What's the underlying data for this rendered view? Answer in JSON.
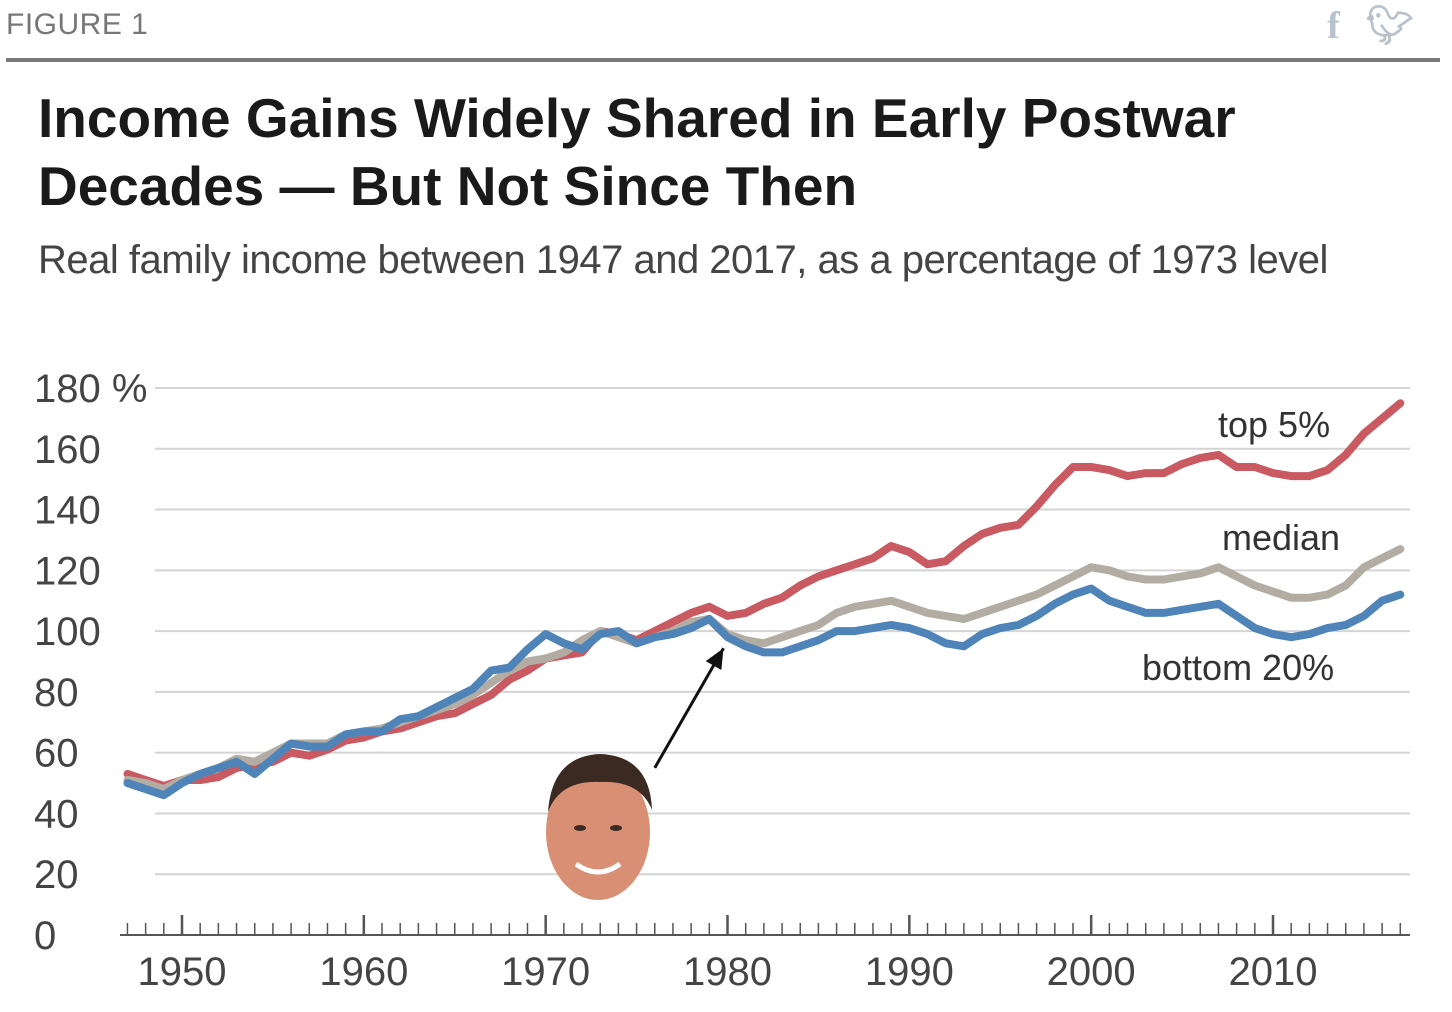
{
  "header": {
    "figure_label": "FIGURE 1",
    "share_icons": [
      "facebook-icon",
      "twitter-icon"
    ]
  },
  "chart_data": {
    "type": "line",
    "title": "Income Gains Widely Shared in Early Postwar Decades — But Not Since Then",
    "subtitle": "Real family income between 1947 and 2017, as a percentage of 1973 level",
    "xlabel": "",
    "ylabel": "",
    "xlim": [
      1947,
      2017
    ],
    "ylim": [
      0,
      180
    ],
    "yticks": [
      "180 %",
      "160",
      "140",
      "120",
      "100",
      "80",
      "60",
      "40",
      "20",
      "0"
    ],
    "yticks_values": [
      180,
      160,
      140,
      120,
      100,
      80,
      60,
      40,
      20,
      0
    ],
    "xticks": [
      "1950",
      "1960",
      "1970",
      "1980",
      "1990",
      "2000",
      "2010"
    ],
    "xticks_values": [
      1950,
      1960,
      1970,
      1980,
      1990,
      2000,
      2010
    ],
    "grid": true,
    "annotation": {
      "description": "arrow pointing to 1980 from a face image",
      "arrow_to": [
        1980,
        97
      ],
      "arrow_from": [
        1976,
        55
      ]
    },
    "series": [
      {
        "name": "top 5%",
        "color": "#c95a62",
        "x": [
          1947,
          1948,
          1949,
          1950,
          1951,
          1952,
          1953,
          1954,
          1955,
          1956,
          1957,
          1958,
          1959,
          1960,
          1961,
          1962,
          1963,
          1964,
          1965,
          1966,
          1967,
          1968,
          1969,
          1970,
          1971,
          1972,
          1973,
          1974,
          1975,
          1976,
          1977,
          1978,
          1979,
          1980,
          1981,
          1982,
          1983,
          1984,
          1985,
          1986,
          1987,
          1988,
          1989,
          1990,
          1991,
          1992,
          1993,
          1994,
          1995,
          1996,
          1997,
          1998,
          1999,
          2000,
          2001,
          2002,
          2003,
          2004,
          2005,
          2006,
          2007,
          2008,
          2009,
          2010,
          2011,
          2012,
          2013,
          2014,
          2015,
          2016,
          2017
        ],
        "values": [
          53,
          51,
          49,
          51,
          51,
          52,
          55,
          56,
          57,
          60,
          59,
          61,
          64,
          65,
          67,
          68,
          70,
          72,
          73,
          76,
          79,
          84,
          87,
          91,
          92,
          93,
          100,
          99,
          97,
          100,
          103,
          106,
          108,
          105,
          106,
          109,
          111,
          115,
          118,
          120,
          122,
          124,
          128,
          126,
          122,
          123,
          128,
          132,
          134,
          135,
          141,
          148,
          154,
          154,
          153,
          151,
          152,
          152,
          155,
          157,
          158,
          154,
          154,
          152,
          151,
          151,
          153,
          158,
          165,
          170,
          175
        ],
        "label": "top 5%"
      },
      {
        "name": "median",
        "color": "#b3aca2",
        "x": [
          1947,
          1948,
          1949,
          1950,
          1951,
          1952,
          1953,
          1954,
          1955,
          1956,
          1957,
          1958,
          1959,
          1960,
          1961,
          1962,
          1963,
          1964,
          1965,
          1966,
          1967,
          1968,
          1969,
          1970,
          1971,
          1972,
          1973,
          1974,
          1975,
          1976,
          1977,
          1978,
          1979,
          1980,
          1981,
          1982,
          1983,
          1984,
          1985,
          1986,
          1987,
          1988,
          1989,
          1990,
          1991,
          1992,
          1993,
          1994,
          1995,
          1996,
          1997,
          1998,
          1999,
          2000,
          2001,
          2002,
          2003,
          2004,
          2005,
          2006,
          2007,
          2008,
          2009,
          2010,
          2011,
          2012,
          2013,
          2014,
          2015,
          2016,
          2017
        ],
        "values": [
          51,
          50,
          48,
          51,
          53,
          55,
          58,
          57,
          60,
          63,
          63,
          63,
          66,
          67,
          68,
          70,
          72,
          74,
          76,
          79,
          83,
          87,
          90,
          91,
          93,
          97,
          100,
          98,
          96,
          98,
          100,
          103,
          104,
          99,
          97,
          96,
          98,
          100,
          102,
          106,
          108,
          109,
          110,
          108,
          106,
          105,
          104,
          106,
          108,
          110,
          112,
          115,
          118,
          121,
          120,
          118,
          117,
          117,
          118,
          119,
          121,
          118,
          115,
          113,
          111,
          111,
          112,
          115,
          121,
          124,
          127
        ],
        "label": "median"
      },
      {
        "name": "bottom 20%",
        "color": "#4f84b8",
        "x": [
          1947,
          1948,
          1949,
          1950,
          1951,
          1952,
          1953,
          1954,
          1955,
          1956,
          1957,
          1958,
          1959,
          1960,
          1961,
          1962,
          1963,
          1964,
          1965,
          1966,
          1967,
          1968,
          1969,
          1970,
          1971,
          1972,
          1973,
          1974,
          1975,
          1976,
          1977,
          1978,
          1979,
          1980,
          1981,
          1982,
          1983,
          1984,
          1985,
          1986,
          1987,
          1988,
          1989,
          1990,
          1991,
          1992,
          1993,
          1994,
          1995,
          1996,
          1997,
          1998,
          1999,
          2000,
          2001,
          2002,
          2003,
          2004,
          2005,
          2006,
          2007,
          2008,
          2009,
          2010,
          2011,
          2012,
          2013,
          2014,
          2015,
          2016,
          2017
        ],
        "values": [
          50,
          48,
          46,
          50,
          53,
          55,
          57,
          53,
          58,
          63,
          62,
          62,
          66,
          67,
          67,
          71,
          72,
          75,
          78,
          81,
          87,
          88,
          94,
          99,
          96,
          94,
          99,
          100,
          96,
          98,
          99,
          101,
          104,
          98,
          95,
          93,
          93,
          95,
          97,
          100,
          100,
          101,
          102,
          101,
          99,
          96,
          95,
          99,
          101,
          102,
          105,
          109,
          112,
          114,
          110,
          108,
          106,
          106,
          107,
          108,
          109,
          105,
          101,
          99,
          98,
          99,
          101,
          102,
          105,
          110,
          112
        ],
        "label": "bottom 20%"
      }
    ]
  }
}
